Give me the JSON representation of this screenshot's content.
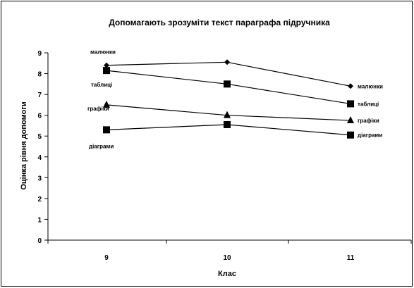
{
  "chart_data": {
    "type": "line",
    "title": "Допомагають зрозуміти текст параграфа підручника",
    "xlabel": "Клас",
    "ylabel": "Оцінка рівня допомоги",
    "categories": [
      "9",
      "10",
      "11"
    ],
    "ylim": [
      0,
      9
    ],
    "yticks": [
      0,
      1,
      2,
      3,
      4,
      5,
      6,
      7,
      8,
      9
    ],
    "grid": false,
    "legend": "none (series labelled inline)",
    "series": [
      {
        "name": "малюнки",
        "values": [
          8.4,
          8.55,
          7.4
        ],
        "marker": "diamond"
      },
      {
        "name": "таблиці",
        "values": [
          8.15,
          7.5,
          6.55
        ],
        "marker": "square"
      },
      {
        "name": "графіки",
        "values": [
          6.5,
          6.0,
          5.75
        ],
        "marker": "triangle"
      },
      {
        "name": "діаграми",
        "values": [
          5.3,
          5.55,
          5.05
        ],
        "marker": "square"
      }
    ],
    "colors": {
      "line": "#000000",
      "background": "#ffffff"
    }
  }
}
